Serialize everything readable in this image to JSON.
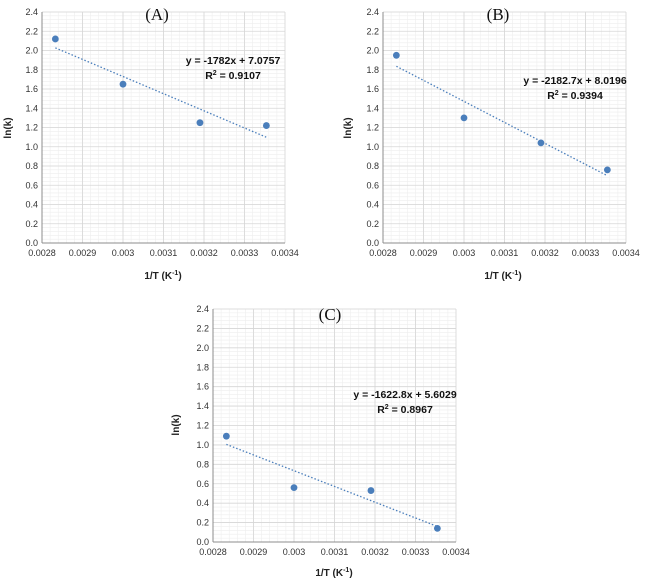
{
  "chart_data": [
    {
      "type": "scatter",
      "panel_label": "(A)",
      "xlabel": "1/T (K",
      "xlabel_sup": "-1",
      "xlabel_end": ")",
      "ylabel": "ln(k)",
      "xlim": [
        0.0028,
        0.0034
      ],
      "ylim": [
        0,
        2.4
      ],
      "xticks": [
        "0.0028",
        "0.0029",
        "0.003",
        "0.0031",
        "0.0032",
        "0.0033",
        "0.0034"
      ],
      "yticks": [
        "0.0",
        "0.2",
        "0.4",
        "0.6",
        "0.8",
        "1.0",
        "1.2",
        "1.4",
        "1.6",
        "1.8",
        "2.0",
        "2.2",
        "2.4"
      ],
      "grid": true,
      "points": [
        {
          "x": 0.002833,
          "y": 2.12
        },
        {
          "x": 0.003,
          "y": 1.65
        },
        {
          "x": 0.00319,
          "y": 1.25
        },
        {
          "x": 0.003354,
          "y": 1.22
        }
      ],
      "trendline": {
        "slope": -1782,
        "intercept": 7.0757
      },
      "equation": "y = -1782x + 7.0757",
      "r2_label": "R",
      "r2_sup": "2",
      "r2_value": " = 0.9107",
      "point_color": "#4a7ebb",
      "trend_color": "#4a7ebb"
    },
    {
      "type": "scatter",
      "panel_label": "(B)",
      "xlabel": "1/T (K",
      "xlabel_sup": "-1",
      "xlabel_end": ")",
      "ylabel": "ln(k)",
      "xlim": [
        0.0028,
        0.0034
      ],
      "ylim": [
        0,
        2.4
      ],
      "xticks": [
        "0.0028",
        "0.0029",
        "0.003",
        "0.0031",
        "0.0032",
        "0.0033",
        "0.0034"
      ],
      "yticks": [
        "0.0",
        "0.2",
        "0.4",
        "0.6",
        "0.8",
        "1.0",
        "1.2",
        "1.4",
        "1.6",
        "1.8",
        "2.0",
        "2.2",
        "2.4"
      ],
      "grid": true,
      "points": [
        {
          "x": 0.002833,
          "y": 1.95
        },
        {
          "x": 0.003,
          "y": 1.3
        },
        {
          "x": 0.00319,
          "y": 1.04
        },
        {
          "x": 0.003354,
          "y": 0.76
        }
      ],
      "trendline": {
        "slope": -2182.7,
        "intercept": 8.0196
      },
      "equation": "y = -2182.7x + 8.0196",
      "r2_label": "R",
      "r2_sup": "2",
      "r2_value": " = 0.9394",
      "point_color": "#4a7ebb",
      "trend_color": "#4a7ebb"
    },
    {
      "type": "scatter",
      "panel_label": "(C)",
      "xlabel": "1/T (K",
      "xlabel_sup": "-1",
      "xlabel_end": ")",
      "ylabel": "ln(k)",
      "xlim": [
        0.0028,
        0.0034
      ],
      "ylim": [
        0,
        2.4
      ],
      "xticks": [
        "0.0028",
        "0.0029",
        "0.003",
        "0.0031",
        "0.0032",
        "0.0033",
        "0.0034"
      ],
      "yticks": [
        "0.0",
        "0.2",
        "0.4",
        "0.6",
        "0.8",
        "1.0",
        "1.2",
        "1.4",
        "1.6",
        "1.8",
        "2.0",
        "2.2",
        "2.4"
      ],
      "grid": true,
      "points": [
        {
          "x": 0.002833,
          "y": 1.09
        },
        {
          "x": 0.003,
          "y": 0.56
        },
        {
          "x": 0.00319,
          "y": 0.53
        },
        {
          "x": 0.003354,
          "y": 0.14
        }
      ],
      "trendline": {
        "slope": -1622.8,
        "intercept": 5.6029
      },
      "equation": "y = -1622.8x + 5.6029",
      "r2_label": "R",
      "r2_sup": "2",
      "r2_value": " = 0.8967",
      "point_color": "#4a7ebb",
      "trend_color": "#4a7ebb"
    }
  ]
}
